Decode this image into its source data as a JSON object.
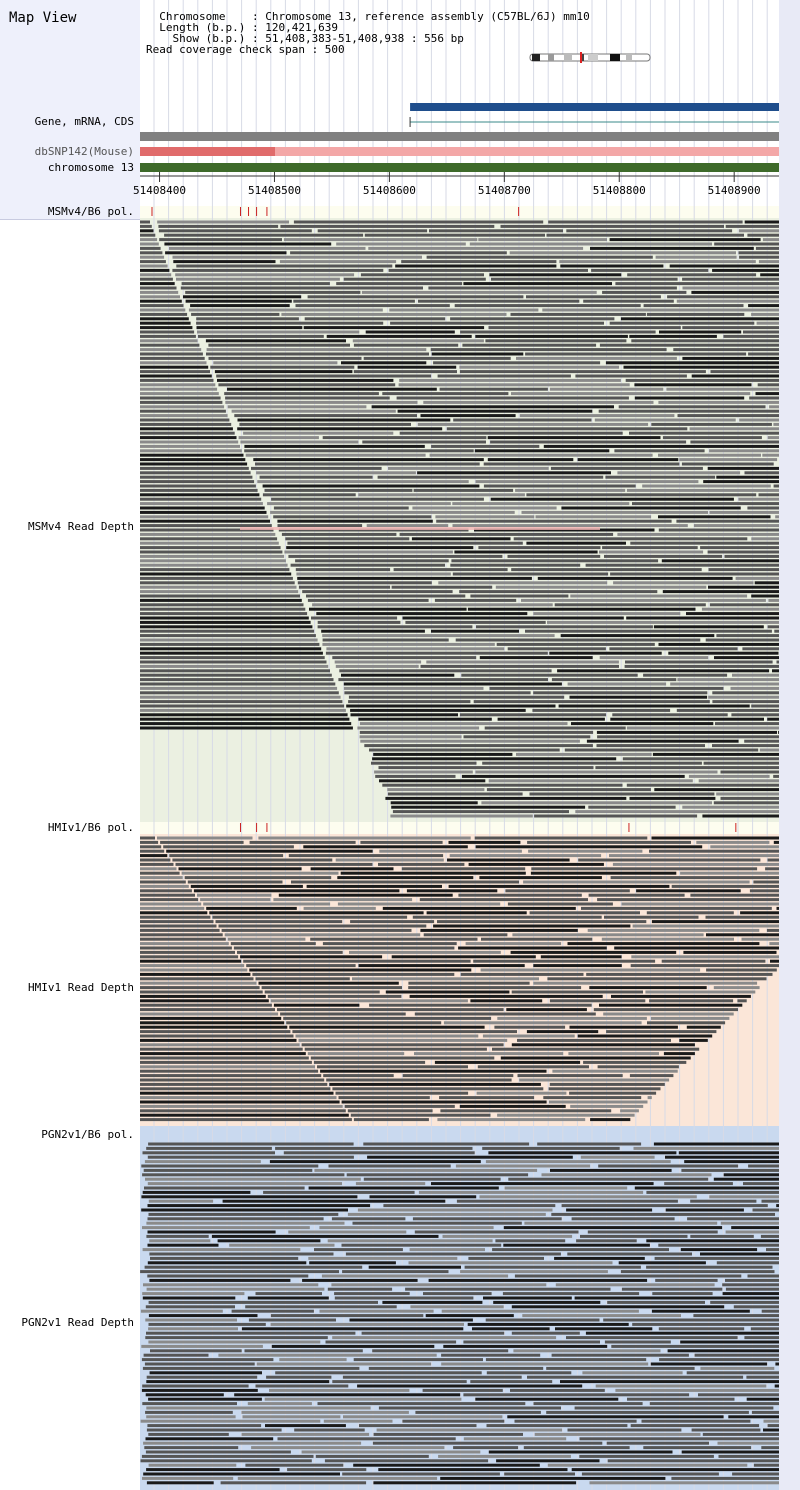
{
  "title": "Map View",
  "header": {
    "lines": [
      "  Chromosome    : Chromosome 13, reference assembly (C57BL/6J) mm10",
      "  Length (b.p.) : 120,421,639",
      "    Show (b.p.) : 51,408,383-51,408,938 : 556 bp",
      "Read coverage check span : 500"
    ]
  },
  "region": {
    "start": 51408383,
    "end": 51408938
  },
  "axis_ticks": [
    "51408400",
    "51408500",
    "51408600",
    "51408700",
    "51408800",
    "51408900"
  ],
  "axis_tick_values": [
    51408400,
    51408500,
    51408600,
    51408700,
    51408800,
    51408900
  ],
  "track_labels": {
    "gene": "Gene, mRNA, CDS",
    "dbsnp": "dbSNP142(Mouse)",
    "chromosome": "chromosome 13",
    "msm_pol": "MSMv4/B6 pol.",
    "msm_depth": "MSMv4 Read Depth",
    "hmi_pol": "HMIv1/B6 pol.",
    "hmi_depth": "HMIv1 Read Depth",
    "pgn_pol": "PGN2v1/B6 pol.",
    "pgn_depth": "PGN2v1 Read Depth"
  },
  "colors": {
    "gene_bar": "#1f4e8c",
    "mrna_line": "#3a8a8a",
    "gray_bar": "#808080",
    "dbsnp_bar": "#f3a7a7",
    "dbsnp_dark": "#e06b6b",
    "chromosome_bar": "#3e6a2a",
    "msm_bg": "#ebf0e1",
    "hmi_bg": "#fbe6d8",
    "pgn_bg": "#c9d9ef",
    "pol_bg": "#fdfdef",
    "polymorphism_tick": "#cc2222",
    "read_dark": "#1a1a1a",
    "read_mid": "#555555",
    "read_light": "#8a8a8a"
  },
  "gene_start": 51408618,
  "msm_polymorphisms": [
    51408393,
    51408470,
    51408477,
    51408484,
    51408493,
    51408712
  ],
  "hmi_polymorphisms": [
    51408470,
    51408484,
    51408493,
    51408808,
    51408901
  ],
  "pgn_polymorphisms": []
}
